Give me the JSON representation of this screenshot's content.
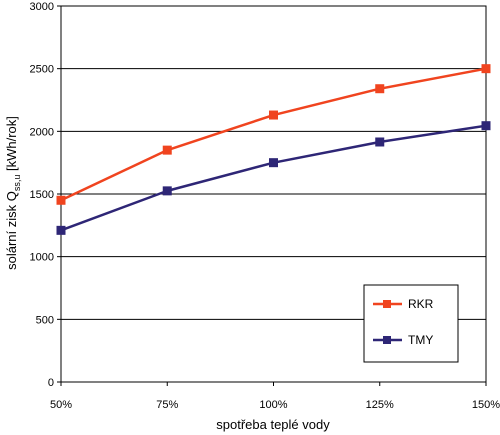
{
  "chart_data": {
    "type": "line",
    "title": "",
    "xlabel": "spotřeba teplé vody",
    "ylabel": {
      "main": "solární zisk Q",
      "subscript": "ss,u",
      "unit": " [kWh/rok]"
    },
    "categories": [
      "50%",
      "75%",
      "100%",
      "125%",
      "150%"
    ],
    "ylim": [
      0,
      3000
    ],
    "yticks": [
      "0",
      "500",
      "1000",
      "1500",
      "2000",
      "2500",
      "3000"
    ],
    "grid": "horizontal",
    "legend_position": "bottom-right",
    "series": [
      {
        "name": "RKR",
        "color": "#f0441f",
        "values": [
          1450,
          1850,
          2130,
          2340,
          2500
        ]
      },
      {
        "name": "TMY",
        "color": "#2e2676",
        "values": [
          1210,
          1525,
          1750,
          1915,
          2045
        ]
      }
    ]
  }
}
